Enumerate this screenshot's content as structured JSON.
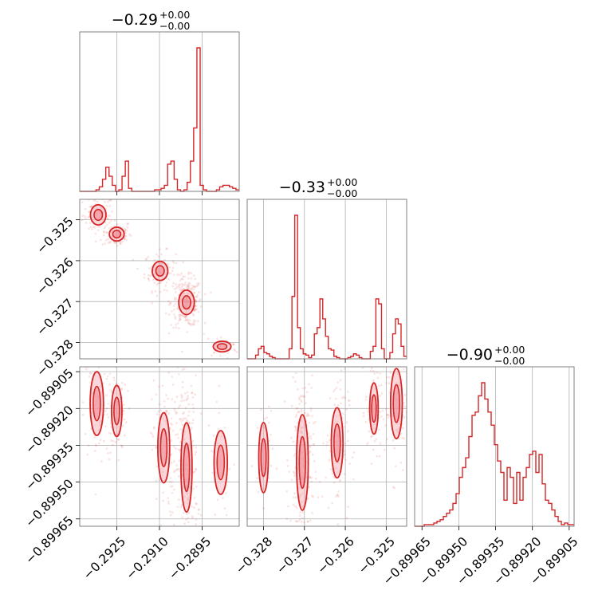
{
  "colors": {
    "accent": "#d62728",
    "contour_fill": "#f4b6bb",
    "grid": "#b0b0b0",
    "frame": "#808080"
  },
  "chart_data": {
    "type": "corner",
    "parameters": [
      {
        "title": {
          "main": "−0.29",
          "upper": "+0.00",
          "lower": "−0.00"
        },
        "range": [
          -0.2938,
          -0.2882
        ],
        "ticks": [
          -0.2925,
          -0.291,
          -0.2895
        ],
        "tick_labels": [
          "−0.2925",
          "−0.2910",
          "−0.2895"
        ]
      },
      {
        "title": {
          "main": "−0.33",
          "upper": "+0.00",
          "lower": "−0.00"
        },
        "range": [
          -0.3284,
          -0.3245
        ],
        "ticks": [
          -0.328,
          -0.327,
          -0.326,
          -0.325
        ],
        "tick_labels": [
          "−0.328",
          "−0.327",
          "−0.326",
          "−0.325"
        ]
      },
      {
        "title": {
          "main": "−0.90",
          "upper": "+0.00",
          "lower": "−0.00"
        },
        "range": [
          -0.89968,
          -0.89903
        ],
        "ticks": [
          -0.89965,
          -0.8995,
          -0.89935,
          -0.8992,
          -0.89905
        ],
        "tick_labels": [
          "−0.89965",
          "−0.89950",
          "−0.89935",
          "−0.89920",
          "−0.89905"
        ]
      }
    ],
    "histograms": [
      {
        "param": 0,
        "counts": [
          0,
          0,
          0,
          0,
          0,
          1,
          3,
          8,
          16,
          10,
          4,
          0,
          1,
          10,
          20,
          2,
          0,
          0,
          0,
          0,
          0,
          0,
          0,
          1,
          1,
          2,
          4,
          18,
          20,
          8,
          1,
          0,
          1,
          6,
          20,
          42,
          95,
          4,
          1,
          0,
          0,
          0,
          1,
          3,
          4,
          4,
          3,
          2,
          1
        ]
      },
      {
        "param": 1,
        "counts": [
          0,
          0,
          0,
          3,
          8,
          10,
          5,
          4,
          2,
          1,
          0,
          0,
          0,
          0,
          0,
          8,
          50,
          115,
          25,
          8,
          4,
          3,
          1,
          3,
          20,
          25,
          48,
          32,
          18,
          8,
          7,
          2,
          1,
          0,
          0,
          0,
          1,
          2,
          4,
          3,
          1,
          0,
          0,
          0,
          6,
          10,
          48,
          44,
          8,
          0,
          0,
          5,
          20,
          32,
          28,
          10,
          2
        ]
      },
      {
        "param": 2,
        "counts": [
          0,
          0,
          0,
          1,
          1,
          1,
          2,
          3,
          4,
          6,
          8,
          10,
          14,
          20,
          30,
          36,
          42,
          55,
          68,
          70,
          80,
          88,
          78,
          70,
          62,
          50,
          40,
          33,
          16,
          36,
          30,
          14,
          33,
          16,
          30,
          36,
          44,
          46,
          33,
          44,
          26,
          16,
          14,
          10,
          6,
          3,
          1,
          2,
          1,
          1
        ]
      }
    ],
    "pairs": [
      {
        "x_param": 0,
        "y_param": 1,
        "modes": [
          {
            "x": -0.29315,
            "y": -0.32488,
            "sx": 0.00021,
            "sy": 0.00019,
            "weight": 0.13
          },
          {
            "x": -0.2925,
            "y": -0.32535,
            "sx": 0.0002,
            "sy": 0.00013,
            "weight": 0.12
          },
          {
            "x": -0.29098,
            "y": -0.32625,
            "sx": 0.00021,
            "sy": 0.00018,
            "weight": 0.16
          },
          {
            "x": -0.29005,
            "y": -0.32702,
            "sx": 0.00021,
            "sy": 0.00023,
            "weight": 0.36
          },
          {
            "x": -0.2888,
            "y": -0.3281,
            "sx": 0.00024,
            "sy": 0.0001,
            "weight": 0.05
          }
        ]
      },
      {
        "x_param": 0,
        "y_param": 2,
        "modes": [
          {
            "x": -0.2932,
            "y": -0.89918,
            "sx": 0.00018,
            "sy": 0.0001,
            "weight": 0.13
          },
          {
            "x": -0.2925,
            "y": -0.89921,
            "sx": 0.00014,
            "sy": 8e-05,
            "weight": 0.12
          },
          {
            "x": -0.29085,
            "y": -0.89936,
            "sx": 0.00016,
            "sy": 0.00011,
            "weight": 0.16
          },
          {
            "x": -0.29005,
            "y": -0.89944,
            "sx": 0.00015,
            "sy": 0.00014,
            "weight": 0.36
          },
          {
            "x": -0.28885,
            "y": -0.89942,
            "sx": 0.00018,
            "sy": 0.0001,
            "weight": 0.05
          }
        ]
      },
      {
        "x_param": 1,
        "y_param": 2,
        "modes": [
          {
            "x": -0.328,
            "y": -0.8994,
            "sx": 9e-05,
            "sy": 0.00011,
            "weight": 0.05
          },
          {
            "x": -0.32705,
            "y": -0.89942,
            "sx": 0.00011,
            "sy": 0.00015,
            "weight": 0.36
          },
          {
            "x": -0.3262,
            "y": -0.89934,
            "sx": 0.00011,
            "sy": 0.00011,
            "weight": 0.16
          },
          {
            "x": -0.3253,
            "y": -0.8992,
            "sx": 8e-05,
            "sy": 8e-05,
            "weight": 0.12
          },
          {
            "x": -0.32475,
            "y": -0.89918,
            "sx": 0.00011,
            "sy": 0.00011,
            "weight": 0.13
          }
        ]
      }
    ],
    "grid": true,
    "color": "#d62728"
  }
}
